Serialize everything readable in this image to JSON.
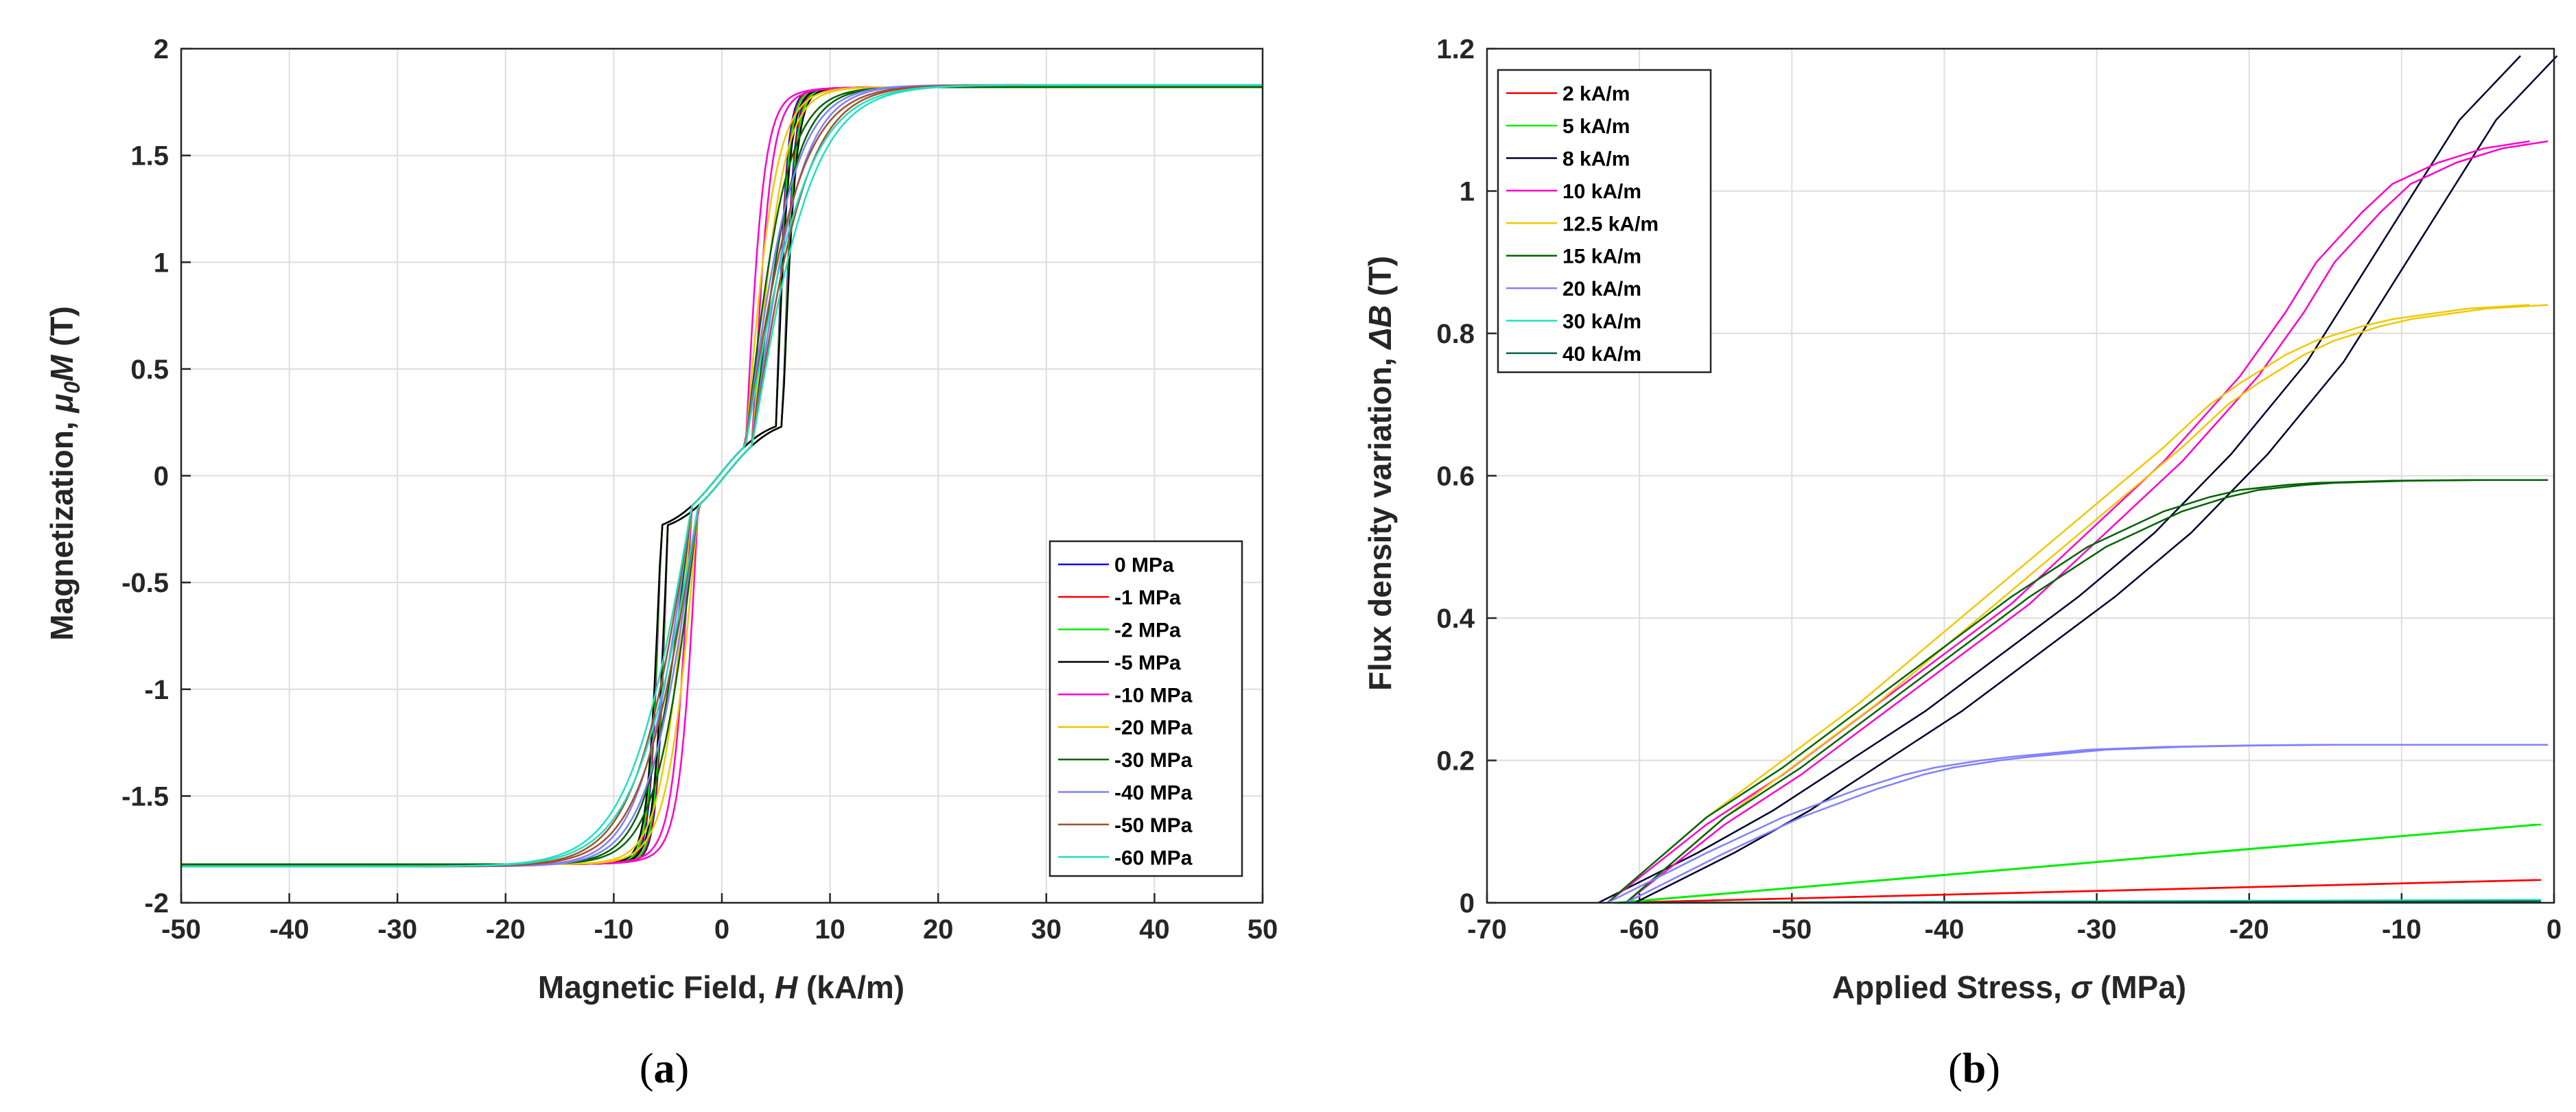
{
  "panels": [
    {
      "id": "a",
      "caption_pre": "(",
      "caption_letter": "a",
      "caption_post": ")",
      "xlabel_pre": "Magnetic Field, ",
      "xlabel_var": "H",
      "xlabel_post": "  (kA/m)",
      "ylabel_pre": "Magnetization, ",
      "ylabel_var": "μ",
      "ylabel_sub": "0",
      "ylabel_var2": "M",
      "ylabel_post": "  (T)"
    },
    {
      "id": "b",
      "caption_pre": "(",
      "caption_letter": "b",
      "caption_post": ")",
      "xlabel_pre": "Applied Stress, ",
      "xlabel_var": "σ",
      "xlabel_post": "  (MPa)",
      "ylabel_pre": "Flux density variation, ",
      "ylabel_var": "ΔB",
      "ylabel_post": "  (T)"
    }
  ],
  "chart_data": [
    {
      "type": "line",
      "xlim": [
        -50,
        50
      ],
      "ylim": [
        -2,
        2
      ],
      "xticks": [
        -50,
        -40,
        -30,
        -20,
        -10,
        0,
        10,
        20,
        30,
        40,
        50
      ],
      "yticks": [
        -2,
        -1.5,
        -1,
        -0.5,
        0,
        0.5,
        1,
        1.5,
        2
      ],
      "grid": true,
      "legend_position": "bottom-right",
      "series": [
        {
          "name": "0 MPa",
          "color": "#0000ff",
          "hc": 0.3,
          "w": 1.2,
          "ms": 1.82
        },
        {
          "name": "-1 MPa",
          "color": "#ff0000",
          "hc": 0.3,
          "w": 1.4,
          "ms": 1.82
        },
        {
          "name": "-2 MPa",
          "color": "#00ee00",
          "hc": 0.3,
          "w": 1.6,
          "ms": 1.82
        },
        {
          "name": "-5 MPa",
          "color": "#000000",
          "hc": 0.3,
          "w": 2.0,
          "ms": 1.82
        },
        {
          "name": "-10 MPa",
          "color": "#ff00cc",
          "hc": 0.3,
          "w": 3.0,
          "ms": 1.82
        },
        {
          "name": "-20 MPa",
          "color": "#f0c800",
          "hc": 0.3,
          "w": 5.0,
          "ms": 1.82
        },
        {
          "name": "-30 MPa",
          "color": "#006400",
          "hc": 0.3,
          "w": 7.0,
          "ms": 1.82
        },
        {
          "name": "-40 MPa",
          "color": "#8080ff",
          "hc": 0.3,
          "w": 8.5,
          "ms": 1.83
        },
        {
          "name": "-50 MPa",
          "color": "#a0522d",
          "hc": 0.3,
          "w": 9.8,
          "ms": 1.83
        },
        {
          "name": "-60 MPa",
          "color": "#20e0c0",
          "hc": 0.3,
          "w": 11.0,
          "ms": 1.83
        }
      ]
    },
    {
      "type": "line",
      "xlim": [
        -70,
        0
      ],
      "ylim": [
        0,
        1.2
      ],
      "xticks": [
        -70,
        -60,
        -50,
        -40,
        -30,
        -20,
        -10,
        0
      ],
      "yticks": [
        0,
        0.2,
        0.4,
        0.6,
        0.8,
        1,
        1.2
      ],
      "grid": true,
      "legend_position": "top-left",
      "series": [
        {
          "name": "2 kA/m",
          "color": "#ff0000",
          "kind": "line",
          "x": [
            -61.5,
            -1
          ],
          "y": [
            0,
            0.032
          ]
        },
        {
          "name": "5 kA/m",
          "color": "#00ee00",
          "kind": "line",
          "x": [
            -61.5,
            -1
          ],
          "y": [
            0,
            0.11
          ]
        },
        {
          "name": "8 kA/m",
          "color": "#000033",
          "kind": "black",
          "x": [
            -61.5,
            -55,
            -50,
            -45,
            -40,
            -35,
            -30,
            -25,
            -20,
            -15,
            -10,
            -5,
            -1
          ],
          "y": [
            0,
            0.07,
            0.13,
            0.2,
            0.27,
            0.35,
            0.43,
            0.52,
            0.63,
            0.76,
            0.93,
            1.1,
            1.19
          ]
        },
        {
          "name": "10 kA/m",
          "color": "#ff00cc",
          "kind": "curve",
          "x": [
            -61.5,
            -55,
            -50,
            -45,
            -40,
            -35,
            -30,
            -25,
            -20,
            -17,
            -15,
            -12,
            -10,
            -7,
            -4,
            -1
          ],
          "y": [
            0,
            0.11,
            0.18,
            0.26,
            0.34,
            0.42,
            0.52,
            0.62,
            0.74,
            0.83,
            0.9,
            0.97,
            1.01,
            1.04,
            1.06,
            1.07
          ]
        },
        {
          "name": "12.5 kA/m",
          "color": "#f0c800",
          "kind": "curve",
          "x": [
            -61.5,
            -55,
            -50,
            -45,
            -40,
            -35,
            -30,
            -25,
            -22,
            -20,
            -17,
            -15,
            -12,
            -10,
            -5,
            -1
          ],
          "y": [
            0,
            0.12,
            0.2,
            0.28,
            0.37,
            0.46,
            0.55,
            0.64,
            0.7,
            0.73,
            0.77,
            0.79,
            0.81,
            0.82,
            0.835,
            0.84
          ]
        },
        {
          "name": "15 kA/m",
          "color": "#006400",
          "kind": "curve",
          "x": [
            -61.5,
            -55,
            -50,
            -45,
            -40,
            -35,
            -30,
            -27,
            -25,
            -22,
            -20,
            -17,
            -15,
            -10,
            -5,
            -1
          ],
          "y": [
            0,
            0.12,
            0.19,
            0.27,
            0.35,
            0.43,
            0.5,
            0.53,
            0.55,
            0.57,
            0.58,
            0.587,
            0.59,
            0.593,
            0.594,
            0.594
          ]
        },
        {
          "name": "20 kA/m",
          "color": "#8080ff",
          "kind": "curve",
          "x": [
            -61.5,
            -55,
            -50,
            -45,
            -42,
            -40,
            -37,
            -35,
            -30,
            -25,
            -20,
            -15,
            -10,
            -5,
            -1
          ],
          "y": [
            0,
            0.07,
            0.12,
            0.16,
            0.18,
            0.19,
            0.2,
            0.205,
            0.215,
            0.219,
            0.221,
            0.222,
            0.222,
            0.222,
            0.222
          ]
        },
        {
          "name": "30 kA/m",
          "color": "#20e0c0",
          "kind": "line",
          "x": [
            -61.5,
            -1
          ],
          "y": [
            0,
            0.004
          ]
        },
        {
          "name": "40 kA/m",
          "color": "#006450",
          "kind": "line",
          "x": [
            -61.5,
            -1
          ],
          "y": [
            0,
            0.002
          ]
        }
      ]
    }
  ]
}
